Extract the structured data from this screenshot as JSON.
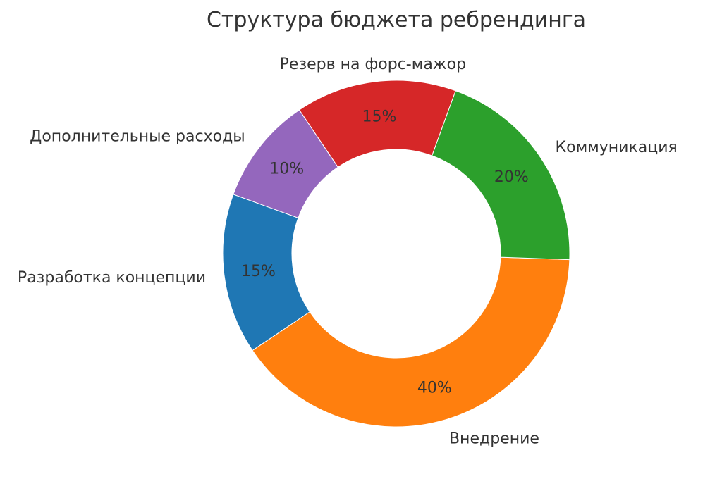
{
  "chart_data": {
    "type": "pie",
    "title": "Структура бюджета ребрендинга",
    "categories": [
      "Разработка концепции",
      "Внедрение",
      "Коммуникация",
      "Резерв на форс-мажор",
      "Дополнительные расходы"
    ],
    "values": [
      15,
      40,
      20,
      15,
      10
    ],
    "percent_labels": [
      "15%",
      "40%",
      "20%",
      "15%",
      "10%"
    ],
    "colors": [
      "#1f77b4",
      "#ff7f0e",
      "#2ca02c",
      "#d62728",
      "#9467bd"
    ],
    "start_angle_deg": 160,
    "direction": "counterclockwise",
    "style": "donut",
    "legend": "none"
  }
}
